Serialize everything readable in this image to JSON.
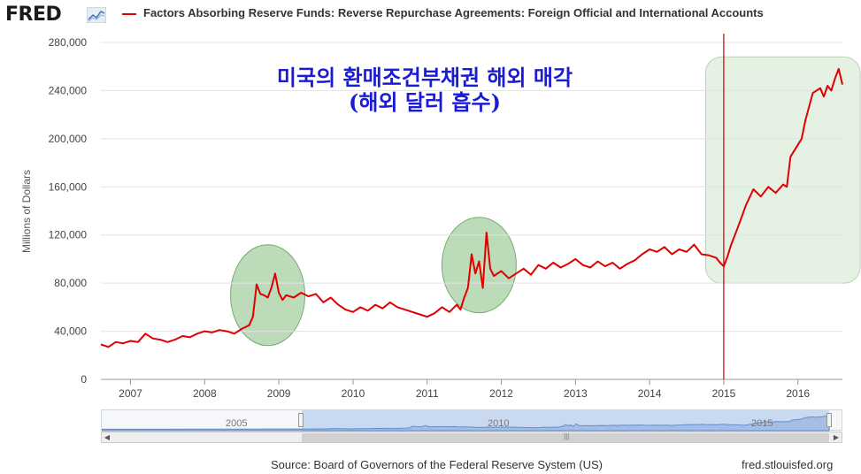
{
  "header": {
    "logo": "FRED",
    "logo_icon": "fred-chart-icon",
    "series_title": "Factors Absorbing Reserve Funds: Reverse Repurchase Agreements: Foreign Official and International Accounts"
  },
  "annotation": {
    "line1": "미국의 환매조건부채권 해외 매각",
    "line2": "(해외 달러 흡수)"
  },
  "footer": {
    "source": "Source: Board of Governors of the Federal Reserve System (US)",
    "url": "fred.stlouisfed.org"
  },
  "navigator": {
    "years": [
      "2005",
      "2010",
      "2015"
    ]
  },
  "colors": {
    "line": "#e00000",
    "highlight": "#8fc58a",
    "annotation_text": "#1b1bd6",
    "marker_line": "#cc0000"
  },
  "chart_data": {
    "type": "line",
    "title": "Factors Absorbing Reserve Funds: Reverse Repurchase Agreements: Foreign Official and International Accounts",
    "xlabel": "",
    "ylabel": "Millions of Dollars",
    "ylim": [
      0,
      280000
    ],
    "yticks": [
      0,
      40000,
      80000,
      120000,
      160000,
      200000,
      240000,
      280000
    ],
    "ytick_labels": [
      "0",
      "40,000",
      "80,000",
      "120,000",
      "160,000",
      "200,000",
      "240,000",
      "280,000"
    ],
    "xlim": [
      2006.6,
      2016.6
    ],
    "xticks": [
      "2007",
      "2008",
      "2009",
      "2010",
      "2011",
      "2012",
      "2013",
      "2014",
      "2015",
      "2016"
    ],
    "grid": "horizontal",
    "series": [
      {
        "name": "Factors Absorbing Reserve Funds: Reverse Repurchase Agreements: Foreign Official and International Accounts",
        "x": [
          2006.6,
          2006.7,
          2006.8,
          2006.9,
          2007.0,
          2007.1,
          2007.2,
          2007.3,
          2007.4,
          2007.5,
          2007.6,
          2007.7,
          2007.8,
          2007.9,
          2008.0,
          2008.1,
          2008.2,
          2008.3,
          2008.4,
          2008.5,
          2008.6,
          2008.65,
          2008.7,
          2008.75,
          2008.8,
          2008.85,
          2008.9,
          2008.95,
          2009.0,
          2009.05,
          2009.1,
          2009.2,
          2009.3,
          2009.4,
          2009.5,
          2009.6,
          2009.7,
          2009.8,
          2009.9,
          2010.0,
          2010.1,
          2010.2,
          2010.3,
          2010.4,
          2010.5,
          2010.6,
          2010.7,
          2010.8,
          2010.9,
          2011.0,
          2011.1,
          2011.2,
          2011.3,
          2011.4,
          2011.45,
          2011.5,
          2011.55,
          2011.6,
          2011.65,
          2011.7,
          2011.75,
          2011.8,
          2011.85,
          2011.9,
          2012.0,
          2012.1,
          2012.2,
          2012.3,
          2012.4,
          2012.5,
          2012.6,
          2012.7,
          2012.8,
          2012.9,
          2013.0,
          2013.1,
          2013.2,
          2013.3,
          2013.4,
          2013.5,
          2013.6,
          2013.7,
          2013.8,
          2013.9,
          2014.0,
          2014.1,
          2014.2,
          2014.3,
          2014.4,
          2014.5,
          2014.6,
          2014.7,
          2014.8,
          2014.9,
          2014.95,
          2015.0,
          2015.05,
          2015.1,
          2015.2,
          2015.3,
          2015.4,
          2015.5,
          2015.6,
          2015.7,
          2015.8,
          2015.85,
          2015.9,
          2016.0,
          2016.05,
          2016.1,
          2016.2,
          2016.3,
          2016.35,
          2016.4,
          2016.45,
          2016.5,
          2016.55,
          2016.6
        ],
        "values": [
          29000,
          27000,
          31000,
          30000,
          32000,
          31000,
          38000,
          34000,
          33000,
          31000,
          33000,
          36000,
          35000,
          38000,
          40000,
          39000,
          41000,
          40000,
          38000,
          42000,
          45000,
          52000,
          79000,
          71000,
          70000,
          68000,
          76000,
          88000,
          72000,
          66000,
          70000,
          68000,
          72000,
          69000,
          71000,
          64000,
          68000,
          62000,
          58000,
          56000,
          60000,
          57000,
          62000,
          59000,
          64000,
          60000,
          58000,
          56000,
          54000,
          52000,
          55000,
          60000,
          56000,
          62000,
          58000,
          68000,
          76000,
          104000,
          88000,
          98000,
          76000,
          122000,
          92000,
          86000,
          90000,
          84000,
          88000,
          92000,
          87000,
          95000,
          92000,
          97000,
          93000,
          96000,
          100000,
          95000,
          93000,
          98000,
          94000,
          97000,
          92000,
          96000,
          99000,
          104000,
          108000,
          106000,
          110000,
          104000,
          108000,
          106000,
          112000,
          104000,
          103000,
          101000,
          97000,
          94000,
          102000,
          112000,
          128000,
          145000,
          158000,
          152000,
          160000,
          155000,
          162000,
          160000,
          185000,
          195000,
          200000,
          215000,
          238000,
          242000,
          235000,
          244000,
          240000,
          250000,
          258000,
          245000
        ]
      }
    ],
    "highlights": [
      {
        "shape": "ellipse",
        "center_x": 2008.85,
        "center_y": 70000
      },
      {
        "shape": "ellipse",
        "center_x": 2011.7,
        "center_y": 95000
      },
      {
        "shape": "rounded-rect",
        "x_from": 2014.85,
        "x_to": 2016.6,
        "y_from": 80000,
        "y_to": 268000
      }
    ],
    "vertical_marker": 2015.0
  }
}
